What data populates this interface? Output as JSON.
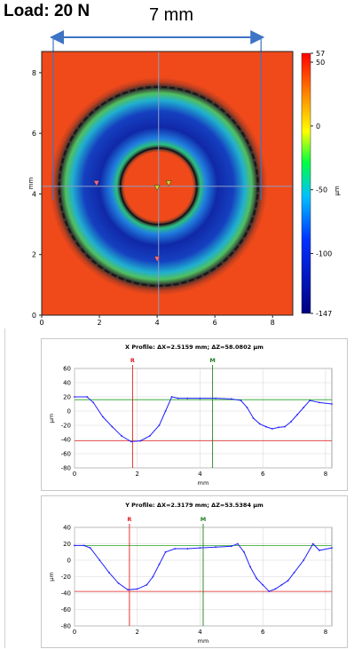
{
  "header": {
    "load_label": "Load: 20 N",
    "dimension_label": "7 mm"
  },
  "map": {
    "xlabel": "mm",
    "ylabel": "mm",
    "xticks": [
      0,
      2,
      4,
      6,
      8
    ],
    "yticks": [
      0,
      2,
      4,
      6,
      8
    ],
    "xlim": [
      0,
      8.7
    ],
    "ylim": [
      0,
      8.7
    ],
    "colorbar": {
      "unit": "µm",
      "tick_labels": [
        "57",
        "50",
        "0",
        "-50",
        "-100",
        "-147"
      ],
      "ticks": [
        57,
        50,
        0,
        -50,
        -100,
        -147
      ],
      "range": [
        -147,
        57
      ],
      "colors": [
        "#ff0000",
        "#ffff00",
        "#00ff00",
        "#00ffff",
        "#0000ff",
        "#000080"
      ]
    },
    "colors": {
      "background": "#f04a1a",
      "track_outer": "#22a0d0",
      "track_inner": "#1030b0",
      "track_edge": "#202020",
      "arrow": "#3d74c4",
      "crosshair": "#8aa0c8"
    }
  },
  "chart_data": [
    {
      "type": "line",
      "title": "X Profile: ΔX=2.5159 mm; ΔZ=58.0802 µm",
      "xlabel": "mm",
      "ylabel": "µm",
      "xlim": [
        0,
        8.2
      ],
      "ylim": [
        -80,
        60
      ],
      "xticks": [
        0,
        2,
        4,
        6,
        8
      ],
      "yticks": [
        60,
        40,
        20,
        0,
        -20,
        -40,
        -60,
        -80
      ],
      "grid": true,
      "markers": [
        {
          "label": "R",
          "x": 1.85,
          "color": "#e02020"
        },
        {
          "label": "M",
          "x": 4.4,
          "color": "#208020"
        }
      ],
      "ref_lines": [
        {
          "axis": "y",
          "value": 16,
          "color": "#20a020"
        },
        {
          "axis": "y",
          "value": -42,
          "color": "#e02020"
        }
      ],
      "series": [
        {
          "color": "#2020ff",
          "x": [
            0.0,
            0.4,
            0.6,
            0.9,
            1.2,
            1.5,
            1.8,
            2.1,
            2.4,
            2.7,
            2.9,
            3.1,
            3.3,
            3.6,
            4.0,
            4.5,
            5.0,
            5.3,
            5.5,
            5.7,
            5.9,
            6.1,
            6.3,
            6.5,
            6.7,
            6.9,
            7.1,
            7.3,
            7.5,
            7.8,
            8.2
          ],
          "y": [
            20,
            20,
            12,
            -8,
            -22,
            -35,
            -43,
            -42,
            -35,
            -20,
            0,
            20,
            18,
            18,
            18,
            18,
            17,
            15,
            5,
            -10,
            -18,
            -22,
            -25,
            -23,
            -22,
            -15,
            -5,
            5,
            15,
            12,
            10
          ]
        }
      ]
    },
    {
      "type": "line",
      "title": "Y Profile: ΔX=2.3179 mm; ΔZ=53.5384 µm",
      "xlabel": "mm",
      "ylabel": "µm",
      "xlim": [
        0,
        8.2
      ],
      "ylim": [
        -80,
        40
      ],
      "xticks": [
        0,
        2,
        4,
        6,
        8
      ],
      "yticks": [
        40,
        20,
        0,
        -20,
        -40,
        -60,
        -80
      ],
      "grid": true,
      "markers": [
        {
          "label": "R",
          "x": 1.75,
          "color": "#e02020"
        },
        {
          "label": "M",
          "x": 4.1,
          "color": "#208020"
        }
      ],
      "ref_lines": [
        {
          "axis": "y",
          "value": 18,
          "color": "#20a020"
        },
        {
          "axis": "y",
          "value": -38,
          "color": "#e02020"
        }
      ],
      "series": [
        {
          "color": "#2020ff",
          "x": [
            0.0,
            0.3,
            0.5,
            0.8,
            1.1,
            1.4,
            1.7,
            2.0,
            2.3,
            2.5,
            2.7,
            2.9,
            3.2,
            3.6,
            4.0,
            4.5,
            5.0,
            5.2,
            5.4,
            5.6,
            5.8,
            6.0,
            6.2,
            6.4,
            6.6,
            6.8,
            7.0,
            7.3,
            7.6,
            7.8,
            8.2
          ],
          "y": [
            18,
            18,
            15,
            0,
            -15,
            -28,
            -36,
            -35,
            -30,
            -20,
            -5,
            10,
            14,
            14,
            15,
            16,
            17,
            20,
            10,
            -8,
            -22,
            -30,
            -38,
            -35,
            -30,
            -25,
            -15,
            0,
            20,
            12,
            15
          ]
        }
      ]
    }
  ]
}
